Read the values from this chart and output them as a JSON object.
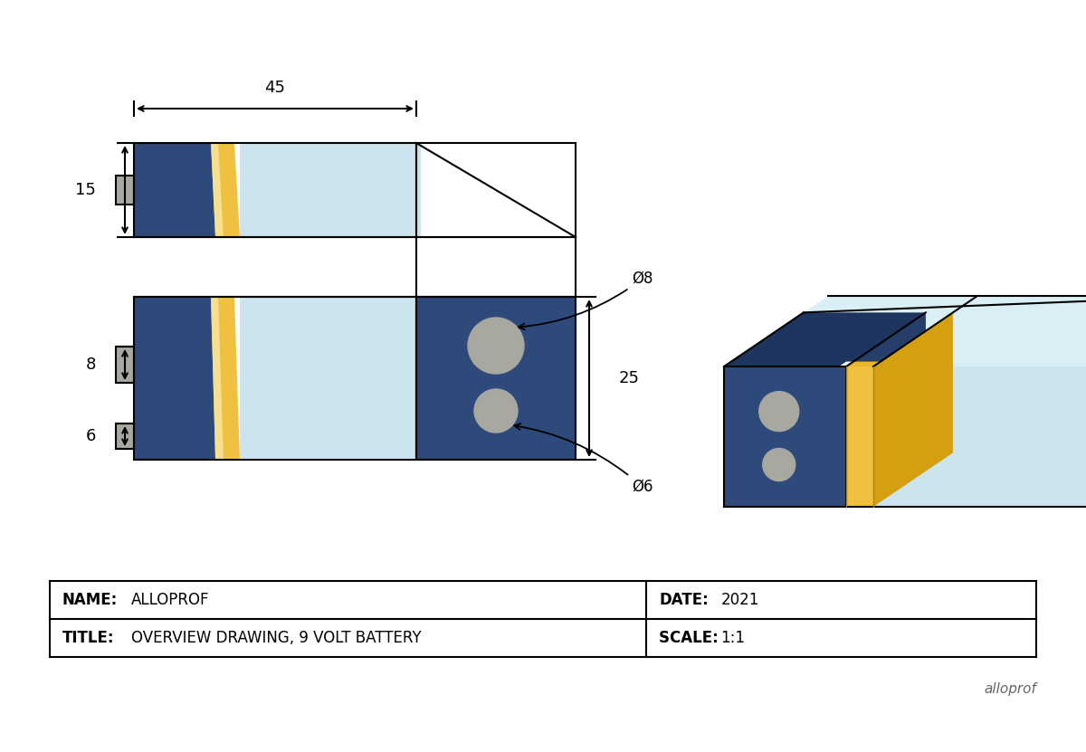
{
  "bg_color": "#ffffff",
  "dark_blue": "#2d4a7a",
  "dark_blue_top": "#1e3560",
  "dark_blue_side": "#263e6a",
  "light_blue": "#cce4ee",
  "light_blue_side": "#b8d4de",
  "light_blue_top": "#daeef5",
  "gold": "#f0c040",
  "light_gold": "#f5e090",
  "gray_term": "#a8a8a0",
  "line_color": "#000000",
  "table_name_label": "NAME:",
  "table_name_value": "ALLOPROF",
  "table_date_label": "DATE:",
  "table_date_value": "2021",
  "table_title_label": "TITLE:",
  "table_title_value": "OVERVIEW DRAWING, 9 VOLT BATTERY",
  "table_scale_label": "SCALE: ",
  "table_scale_value": "1:1",
  "watermark": "alloprof",
  "dim_45": "45",
  "dim_15": "15",
  "dim_8": "8",
  "dim_6": "6",
  "dim_25": "25",
  "dim_dia8": "Ø8",
  "dim_dia6": "Ø6"
}
